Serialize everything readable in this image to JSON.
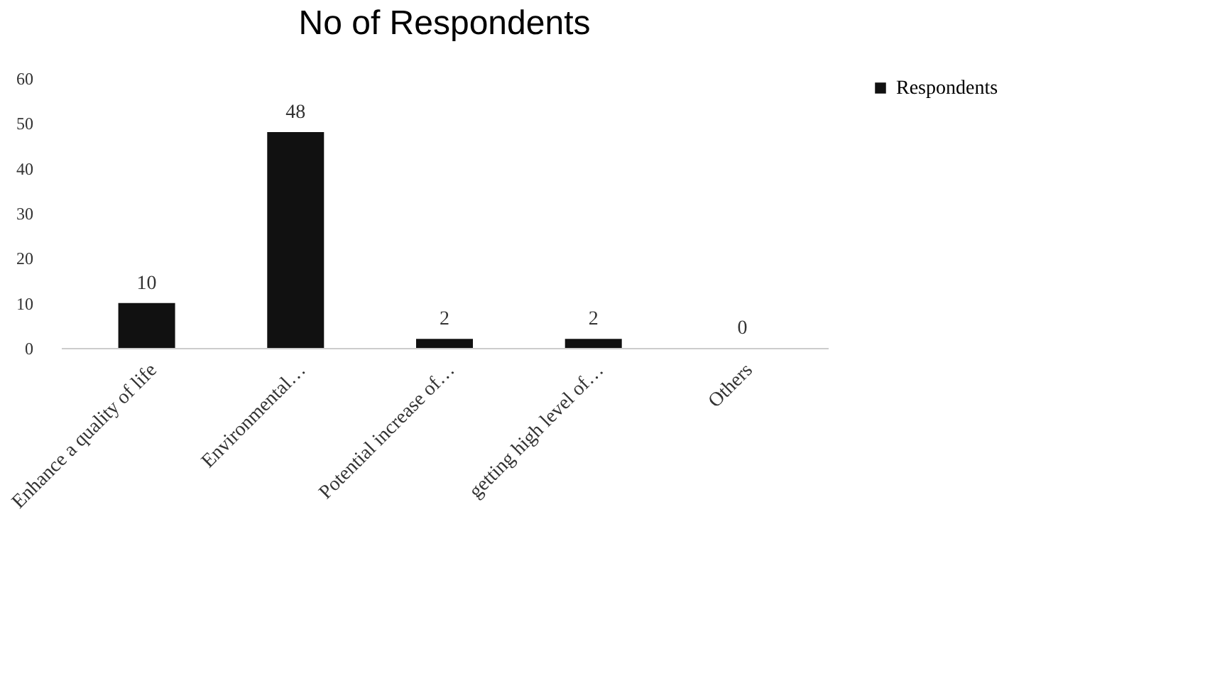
{
  "chart_data": {
    "type": "bar",
    "title": "No of Respondents",
    "categories": [
      "Enhance a quality of life",
      "Environmental…",
      "Potential increase of…",
      "getting high level of…",
      "Others"
    ],
    "series": [
      {
        "name": "Respondents",
        "color": "#111111",
        "values": [
          10,
          48,
          2,
          2,
          0
        ]
      }
    ],
    "ylim": [
      0,
      60
    ],
    "yticks": [
      0,
      10,
      20,
      30,
      40,
      50,
      60
    ],
    "grid": false,
    "legend": "right",
    "data_labels": true
  }
}
